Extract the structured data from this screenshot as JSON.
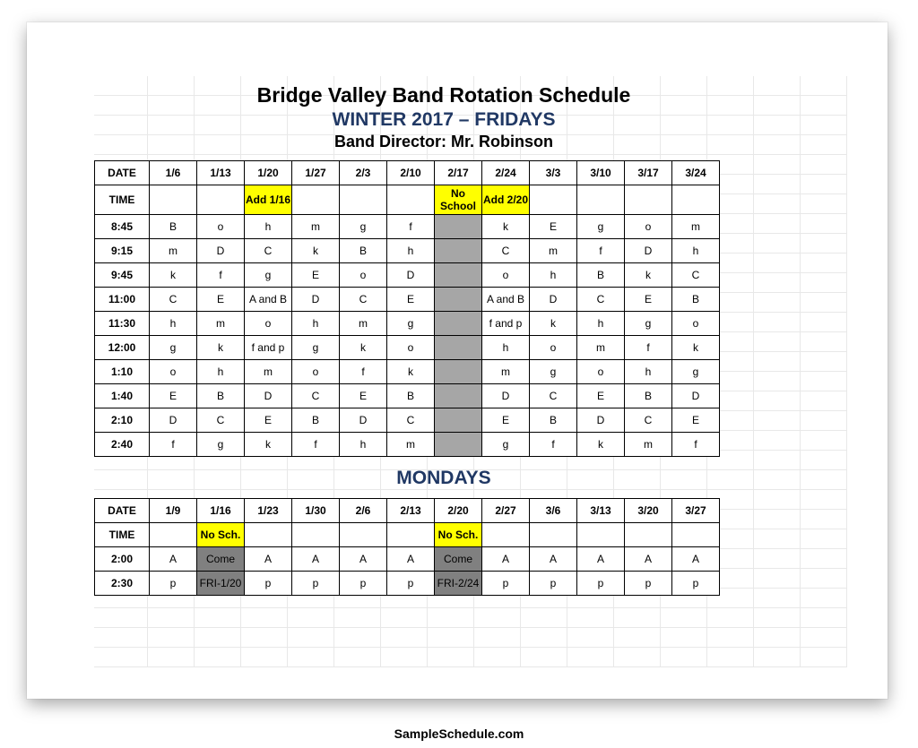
{
  "colors": {
    "heading_blue": "#203864",
    "highlight_yellow": "#ffff00",
    "grey_cell": "#a6a6a6",
    "grey_dark": "#808080",
    "gridline": "#e8e8e8",
    "border": "#000000",
    "background": "#ffffff"
  },
  "header": {
    "title": "Bridge Valley Band  Rotation Schedule",
    "subtitle": "WINTER 2017 – FRIDAYS",
    "director": "Band Director: Mr. Robinson"
  },
  "fridays": {
    "col_widths": {
      "first": 60,
      "others": 52
    },
    "date_label": "DATE",
    "time_label": "TIME",
    "dates": [
      "1/6",
      "1/13",
      "1/20",
      "1/27",
      "2/3",
      "2/10",
      "2/17",
      "2/24",
      "3/3",
      "3/10",
      "3/17",
      "3/24"
    ],
    "time_row_notes": {
      "2": {
        "text": "Add 1/16",
        "class": "hl-yellow"
      },
      "6": {
        "text": "No School",
        "class": "hl-yellow"
      },
      "7": {
        "text": "Add 2/20",
        "class": "hl-yellow"
      }
    },
    "rows": [
      {
        "time": "8:45",
        "cells": [
          "B",
          "o",
          "h",
          "m",
          "g",
          "f",
          {
            "grey": true
          },
          "k",
          "E",
          "g",
          "o",
          "m"
        ]
      },
      {
        "time": "9:15",
        "cells": [
          "m",
          "D",
          "C",
          "k",
          "B",
          "h",
          {
            "grey": true
          },
          "C",
          "m",
          "f",
          "D",
          "h"
        ]
      },
      {
        "time": "9:45",
        "cells": [
          "k",
          "f",
          "g",
          "E",
          "o",
          "D",
          {
            "grey": true
          },
          "o",
          "h",
          "B",
          "k",
          "C"
        ]
      },
      {
        "time": "11:00",
        "tall": true,
        "cells": [
          "C",
          "E",
          "A and B",
          "D",
          "C",
          "E",
          {
            "grey": true
          },
          "A and B",
          "D",
          "C",
          "E",
          "B"
        ]
      },
      {
        "time": "11:30",
        "tall": true,
        "cells": [
          "h",
          "m",
          "o",
          "h",
          "m",
          "g",
          {
            "grey": true
          },
          "f and p",
          "k",
          "h",
          "g",
          "o"
        ]
      },
      {
        "time": "12:00",
        "tall": true,
        "cells": [
          "g",
          "k",
          "f and p",
          "g",
          "k",
          "o",
          {
            "grey": true
          },
          "h",
          "o",
          "m",
          "f",
          "k"
        ]
      },
      {
        "time": "1:10",
        "tall": true,
        "cells": [
          "o",
          "h",
          "m",
          "o",
          "f",
          "k",
          {
            "grey": true
          },
          "m",
          "g",
          "o",
          "h",
          "g"
        ]
      },
      {
        "time": "1:40",
        "tall": true,
        "cells": [
          "E",
          "B",
          "D",
          "C",
          "E",
          "B",
          {
            "grey": true
          },
          "D",
          "C",
          "E",
          "B",
          "D"
        ]
      },
      {
        "time": "2:10",
        "tall": true,
        "cells": [
          "D",
          "C",
          "E",
          "B",
          "D",
          "C",
          {
            "grey": true
          },
          "E",
          "B",
          "D",
          "C",
          "E"
        ]
      },
      {
        "time": "2:40",
        "tall": true,
        "cells": [
          "f",
          "g",
          "k",
          "f",
          "h",
          "m",
          {
            "grey": true
          },
          "g",
          "f",
          "k",
          "m",
          "f"
        ]
      }
    ]
  },
  "mondays": {
    "title": "MONDAYS",
    "date_label": "DATE",
    "time_label": "TIME",
    "dates": [
      "1/9",
      "1/16",
      "1/23",
      "1/30",
      "2/6",
      "2/13",
      "2/20",
      "2/27",
      "3/6",
      "3/13",
      "3/20",
      "3/27"
    ],
    "time_row_notes": {
      "1": {
        "text": "No Sch.",
        "class": "hl-yellow"
      },
      "6": {
        "text": "No Sch.",
        "class": "hl-yellow"
      }
    },
    "rows": [
      {
        "time": "2:00",
        "cells": [
          "A",
          {
            "text": "Come",
            "class": "grey-dk"
          },
          "A",
          "A",
          "A",
          "A",
          {
            "text": "Come",
            "class": "grey-dk"
          },
          "A",
          "A",
          "A",
          "A",
          "A"
        ]
      },
      {
        "time": "2:30",
        "cells": [
          "p",
          {
            "text": "FRI-1/20",
            "class": "grey-dk"
          },
          "p",
          "p",
          "p",
          "p",
          {
            "text": "FRI-2/24",
            "class": "grey-dk"
          },
          "p",
          "p",
          "p",
          "p",
          "p"
        ]
      }
    ]
  },
  "footer": "SampleSchedule.com"
}
